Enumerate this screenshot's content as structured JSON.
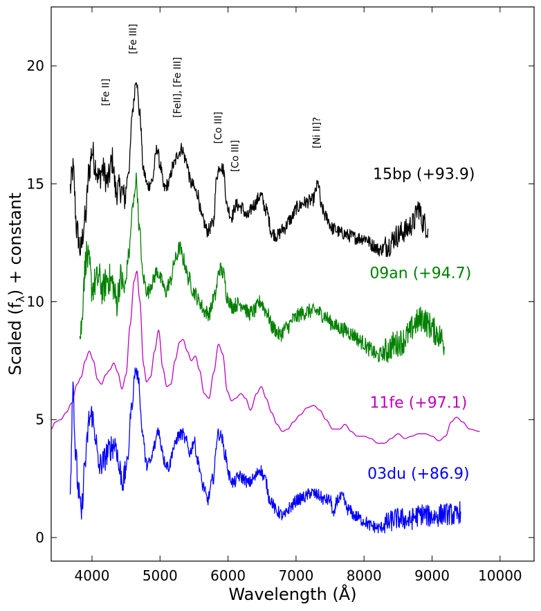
{
  "chart_data": {
    "type": "line",
    "title": "",
    "xlabel": "Wavelength (Å)",
    "ylabel": "Scaled (f",
    "ylabel_sub": "λ",
    "ylabel_tail": ") + constant",
    "xlim": [
      3400,
      10500
    ],
    "ylim": [
      -1,
      22.5
    ],
    "xticks": [
      4000,
      5000,
      6000,
      7000,
      8000,
      9000,
      10000
    ],
    "yticks": [
      0,
      5,
      10,
      15,
      20
    ],
    "annotations": [
      {
        "text": "[Fe II]",
        "x": 4250,
        "y": 18.3
      },
      {
        "text": "[Fe III]",
        "x": 4650,
        "y": 20.5
      },
      {
        "text": "[FeII], [Fe III]",
        "x": 5300,
        "y": 17.8
      },
      {
        "text": "[Co III]",
        "x": 5900,
        "y": 16.7
      },
      {
        "text": "[Co III]",
        "x": 6150,
        "y": 15.5
      },
      {
        "text": "[Ni II]?",
        "x": 7350,
        "y": 16.5
      }
    ],
    "series": [
      {
        "name": "15bp (+93.9)",
        "color": "#000000",
        "noise": 0.28,
        "points": [
          [
            3680,
            14.8
          ],
          [
            3720,
            15.6
          ],
          [
            3780,
            13.0
          ],
          [
            3830,
            12.2
          ],
          [
            3900,
            13.5
          ],
          [
            3960,
            15.6
          ],
          [
            4000,
            16.4
          ],
          [
            4050,
            15.8
          ],
          [
            4100,
            15.2
          ],
          [
            4150,
            15.6
          ],
          [
            4230,
            15.1
          ],
          [
            4300,
            16.0
          ],
          [
            4350,
            14.7
          ],
          [
            4420,
            14.8
          ],
          [
            4480,
            14.4
          ],
          [
            4540,
            15.6
          ],
          [
            4600,
            18.2
          ],
          [
            4650,
            19.5
          ],
          [
            4700,
            18.0
          ],
          [
            4760,
            15.5
          ],
          [
            4820,
            14.9
          ],
          [
            4880,
            15.1
          ],
          [
            4960,
            16.5
          ],
          [
            5000,
            15.8
          ],
          [
            5060,
            14.8
          ],
          [
            5120,
            15.0
          ],
          [
            5200,
            15.8
          ],
          [
            5270,
            16.3
          ],
          [
            5320,
            16.5
          ],
          [
            5380,
            16.0
          ],
          [
            5460,
            15.0
          ],
          [
            5550,
            14.6
          ],
          [
            5620,
            13.5
          ],
          [
            5700,
            13.0
          ],
          [
            5780,
            13.3
          ],
          [
            5840,
            15.4
          ],
          [
            5880,
            15.8
          ],
          [
            5930,
            15.6
          ],
          [
            5990,
            14.0
          ],
          [
            6050,
            13.6
          ],
          [
            6120,
            14.1
          ],
          [
            6200,
            14.0
          ],
          [
            6280,
            13.6
          ],
          [
            6380,
            14.1
          ],
          [
            6480,
            14.5
          ],
          [
            6560,
            13.9
          ],
          [
            6650,
            12.9
          ],
          [
            6720,
            12.8
          ],
          [
            6820,
            13.1
          ],
          [
            6920,
            13.5
          ],
          [
            7020,
            14.0
          ],
          [
            7120,
            14.2
          ],
          [
            7240,
            14.3
          ],
          [
            7330,
            15.0
          ],
          [
            7370,
            14.0
          ],
          [
            7440,
            13.6
          ],
          [
            7540,
            13.1
          ],
          [
            7680,
            12.9
          ],
          [
            7780,
            12.8
          ],
          [
            7900,
            12.7
          ],
          [
            8020,
            12.7
          ],
          [
            8120,
            12.4
          ],
          [
            8230,
            12.2
          ],
          [
            8350,
            12.4
          ],
          [
            8480,
            12.8
          ],
          [
            8600,
            13.0
          ],
          [
            8720,
            13.3
          ],
          [
            8800,
            14.0
          ],
          [
            8860,
            13.4
          ],
          [
            8940,
            13.1
          ]
        ]
      },
      {
        "name": "09an (+94.7)",
        "color": "#008000",
        "noise": 0.32,
        "points": [
          [
            3820,
            8.5
          ],
          [
            3850,
            9.0
          ],
          [
            3880,
            11.0
          ],
          [
            3920,
            12.0
          ],
          [
            3960,
            11.5
          ],
          [
            4000,
            10.6
          ],
          [
            4050,
            10.8
          ],
          [
            4100,
            11.0
          ],
          [
            4160,
            10.5
          ],
          [
            4230,
            11.0
          ],
          [
            4300,
            10.8
          ],
          [
            4360,
            10.0
          ],
          [
            4420,
            11.0
          ],
          [
            4480,
            10.5
          ],
          [
            4540,
            12.0
          ],
          [
            4600,
            14.0
          ],
          [
            4650,
            15.2
          ],
          [
            4700,
            13.0
          ],
          [
            4750,
            11.0
          ],
          [
            4820,
            10.4
          ],
          [
            4880,
            10.8
          ],
          [
            4960,
            11.3
          ],
          [
            5020,
            10.9
          ],
          [
            5080,
            10.4
          ],
          [
            5140,
            10.8
          ],
          [
            5230,
            11.8
          ],
          [
            5290,
            12.3
          ],
          [
            5340,
            11.8
          ],
          [
            5420,
            11.0
          ],
          [
            5500,
            10.4
          ],
          [
            5580,
            10.0
          ],
          [
            5650,
            9.6
          ],
          [
            5720,
            9.5
          ],
          [
            5800,
            10.2
          ],
          [
            5880,
            11.4
          ],
          [
            5930,
            11.2
          ],
          [
            5990,
            10.2
          ],
          [
            6060,
            9.8
          ],
          [
            6140,
            9.9
          ],
          [
            6220,
            9.9
          ],
          [
            6300,
            9.5
          ],
          [
            6380,
            9.6
          ],
          [
            6480,
            10.0
          ],
          [
            6560,
            9.6
          ],
          [
            6660,
            8.9
          ],
          [
            6760,
            8.6
          ],
          [
            6860,
            8.9
          ],
          [
            6980,
            9.3
          ],
          [
            7080,
            9.5
          ],
          [
            7200,
            9.6
          ],
          [
            7300,
            9.6
          ],
          [
            7420,
            9.4
          ],
          [
            7520,
            9.1
          ],
          [
            7620,
            8.9
          ],
          [
            7720,
            8.8
          ],
          [
            7840,
            8.6
          ],
          [
            7960,
            8.3
          ],
          [
            8080,
            8.0
          ],
          [
            8200,
            7.7
          ],
          [
            8320,
            7.9
          ],
          [
            8450,
            8.2
          ],
          [
            8550,
            8.3
          ],
          [
            8650,
            8.6
          ],
          [
            8760,
            9.1
          ],
          [
            8860,
            9.3
          ],
          [
            8960,
            9.0
          ],
          [
            9060,
            8.7
          ],
          [
            9130,
            8.5
          ],
          [
            9180,
            8.1
          ]
        ]
      },
      {
        "name": "11fe (+97.1)",
        "color": "#bf00bf",
        "noise": 0,
        "points": [
          [
            3400,
            4.6
          ],
          [
            3460,
            4.9
          ],
          [
            3540,
            5.0
          ],
          [
            3620,
            5.3
          ],
          [
            3700,
            5.7
          ],
          [
            3780,
            6.5
          ],
          [
            3840,
            6.8
          ],
          [
            3900,
            7.5
          ],
          [
            3960,
            7.9
          ],
          [
            4020,
            7.5
          ],
          [
            4080,
            6.7
          ],
          [
            4140,
            6.5
          ],
          [
            4200,
            6.9
          ],
          [
            4260,
            7.1
          ],
          [
            4320,
            7.4
          ],
          [
            4380,
            7.0
          ],
          [
            4440,
            6.3
          ],
          [
            4500,
            6.9
          ],
          [
            4560,
            9.0
          ],
          [
            4620,
            10.9
          ],
          [
            4660,
            11.3
          ],
          [
            4700,
            10.1
          ],
          [
            4760,
            7.3
          ],
          [
            4800,
            6.6
          ],
          [
            4860,
            6.8
          ],
          [
            4920,
            7.9
          ],
          [
            4980,
            8.8
          ],
          [
            5040,
            7.2
          ],
          [
            5100,
            6.4
          ],
          [
            5160,
            6.5
          ],
          [
            5220,
            7.5
          ],
          [
            5290,
            8.3
          ],
          [
            5340,
            8.4
          ],
          [
            5400,
            7.9
          ],
          [
            5460,
            7.5
          ],
          [
            5520,
            7.7
          ],
          [
            5580,
            7.1
          ],
          [
            5650,
            6.1
          ],
          [
            5720,
            5.9
          ],
          [
            5790,
            7.0
          ],
          [
            5860,
            8.2
          ],
          [
            5920,
            7.8
          ],
          [
            5990,
            6.2
          ],
          [
            6050,
            5.8
          ],
          [
            6110,
            5.9
          ],
          [
            6190,
            6.1
          ],
          [
            6260,
            5.9
          ],
          [
            6330,
            5.4
          ],
          [
            6420,
            6.1
          ],
          [
            6490,
            6.4
          ],
          [
            6560,
            5.9
          ],
          [
            6640,
            5.3
          ],
          [
            6720,
            4.8
          ],
          [
            6800,
            4.5
          ],
          [
            6880,
            4.6
          ],
          [
            6960,
            4.9
          ],
          [
            7060,
            5.2
          ],
          [
            7160,
            5.5
          ],
          [
            7260,
            5.6
          ],
          [
            7350,
            5.4
          ],
          [
            7440,
            5.0
          ],
          [
            7540,
            4.6
          ],
          [
            7640,
            4.6
          ],
          [
            7720,
            4.8
          ],
          [
            7810,
            4.5
          ],
          [
            7900,
            4.3
          ],
          [
            8000,
            4.3
          ],
          [
            8100,
            4.2
          ],
          [
            8200,
            4.0
          ],
          [
            8300,
            4.0
          ],
          [
            8400,
            4.2
          ],
          [
            8500,
            4.4
          ],
          [
            8600,
            4.2
          ],
          [
            8700,
            4.3
          ],
          [
            8800,
            4.4
          ],
          [
            8900,
            4.4
          ],
          [
            9000,
            4.3
          ],
          [
            9100,
            4.1
          ],
          [
            9200,
            4.3
          ],
          [
            9280,
            4.9
          ],
          [
            9360,
            5.1
          ],
          [
            9450,
            4.9
          ],
          [
            9550,
            4.6
          ],
          [
            9700,
            4.5
          ]
        ]
      },
      {
        "name": "03du (+86.9)",
        "color": "#0000ff",
        "noise": 0.26,
        "points": [
          [
            3680,
            2.3
          ],
          [
            3720,
            6.5
          ],
          [
            3760,
            3.5
          ],
          [
            3800,
            2.0
          ],
          [
            3840,
            1.0
          ],
          [
            3900,
            3.2
          ],
          [
            3960,
            5.0
          ],
          [
            4000,
            5.2
          ],
          [
            4040,
            4.5
          ],
          [
            4100,
            3.0
          ],
          [
            4160,
            3.2
          ],
          [
            4230,
            3.6
          ],
          [
            4300,
            3.9
          ],
          [
            4350,
            4.0
          ],
          [
            4400,
            2.9
          ],
          [
            4460,
            2.4
          ],
          [
            4520,
            3.2
          ],
          [
            4580,
            5.5
          ],
          [
            4640,
            7.1
          ],
          [
            4680,
            6.8
          ],
          [
            4740,
            4.5
          ],
          [
            4800,
            3.1
          ],
          [
            4860,
            3.2
          ],
          [
            4920,
            3.9
          ],
          [
            4970,
            4.6
          ],
          [
            5020,
            3.9
          ],
          [
            5070,
            3.2
          ],
          [
            5130,
            3.0
          ],
          [
            5200,
            3.8
          ],
          [
            5270,
            4.3
          ],
          [
            5330,
            4.4
          ],
          [
            5380,
            4.1
          ],
          [
            5440,
            3.6
          ],
          [
            5500,
            4.1
          ],
          [
            5560,
            3.2
          ],
          [
            5630,
            2.2
          ],
          [
            5700,
            1.6
          ],
          [
            5780,
            2.5
          ],
          [
            5850,
            4.4
          ],
          [
            5900,
            4.3
          ],
          [
            5960,
            3.5
          ],
          [
            6020,
            2.6
          ],
          [
            6080,
            2.3
          ],
          [
            6160,
            2.6
          ],
          [
            6230,
            2.5
          ],
          [
            6300,
            2.3
          ],
          [
            6380,
            2.5
          ],
          [
            6470,
            2.9
          ],
          [
            6540,
            2.5
          ],
          [
            6620,
            1.6
          ],
          [
            6720,
            1.1
          ],
          [
            6820,
            0.9
          ],
          [
            6920,
            1.3
          ],
          [
            7020,
            1.6
          ],
          [
            7120,
            1.7
          ],
          [
            7220,
            1.9
          ],
          [
            7320,
            1.8
          ],
          [
            7420,
            1.6
          ],
          [
            7500,
            1.6
          ],
          [
            7560,
            0.9
          ],
          [
            7600,
            1.6
          ],
          [
            7680,
            1.7
          ],
          [
            7760,
            1.2
          ],
          [
            7880,
            0.9
          ],
          [
            8000,
            0.7
          ],
          [
            8100,
            0.5
          ],
          [
            8220,
            0.4
          ],
          [
            8340,
            0.6
          ],
          [
            8460,
            0.8
          ],
          [
            8560,
            0.8
          ],
          [
            8660,
            0.7
          ],
          [
            8760,
            0.9
          ],
          [
            8860,
            1.0
          ],
          [
            8960,
            0.9
          ],
          [
            9060,
            0.9
          ],
          [
            9160,
            1.0
          ],
          [
            9260,
            1.0
          ],
          [
            9350,
            0.9
          ],
          [
            9420,
            1.1
          ]
        ]
      }
    ]
  }
}
